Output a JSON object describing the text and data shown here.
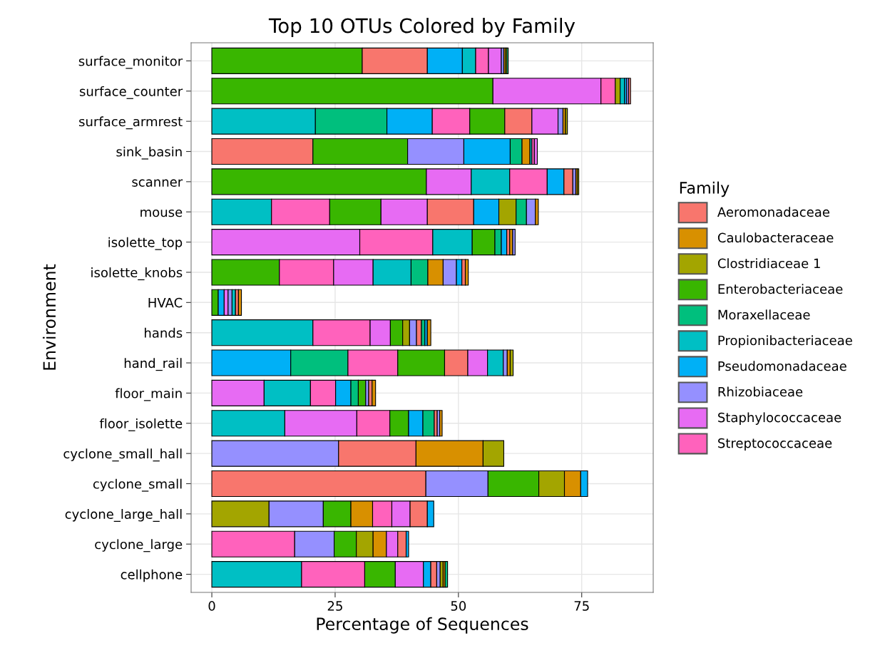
{
  "chart_data": {
    "type": "bar",
    "orientation": "horizontal",
    "stacked": true,
    "title": "Top 10 OTUs Colored by Family",
    "xlabel": "Percentage of Sequences",
    "ylabel": "Environment",
    "legend_title": "Family",
    "legend": "right",
    "grid": true,
    "xlim": [
      -4.2,
      89.5
    ],
    "xticks": [
      0,
      25,
      50,
      75
    ],
    "categories": [
      "surface_monitor",
      "surface_counter",
      "surface_armrest",
      "sink_basin",
      "scanner",
      "mouse",
      "isolette_top",
      "isolette_knobs",
      "HVAC",
      "hands",
      "hand_rail",
      "floor_main",
      "floor_isolette",
      "cyclone_small_hall",
      "cyclone_small",
      "cyclone_large_hall",
      "cyclone_large",
      "cellphone"
    ],
    "series": [
      {
        "values": [
          30.5,
          57.0,
          21.0,
          20.5,
          43.5,
          12.1,
          30.0,
          13.7,
          1.3,
          20.5,
          16.0,
          10.6,
          14.8,
          25.7,
          43.4,
          11.6,
          16.8,
          18.2
        ],
        "colors": [
          "#39B600",
          "#39B600",
          "#00BFC4",
          "#F8766D",
          "#39B600",
          "#00BFC4",
          "#E76BF3",
          "#39B600",
          "#39B600",
          "#00BFC4",
          "#00B0F6",
          "#E76BF3",
          "#00BFC4",
          "#9590FF",
          "#F8766D",
          "#A3A500",
          "#FF62BC",
          "#00BFC4"
        ]
      },
      {
        "values": [
          13.2,
          21.9,
          14.5,
          19.2,
          9.1,
          11.8,
          14.8,
          11.0,
          1.2,
          11.6,
          11.6,
          9.4,
          14.6,
          15.7,
          12.6,
          11.0,
          8.0,
          12.8
        ],
        "colors": [
          "#F8766D",
          "#E76BF3",
          "#00BF7D",
          "#39B600",
          "#E76BF3",
          "#FF62BC",
          "#FF62BC",
          "#FF62BC",
          "#00B0F6",
          "#FF62BC",
          "#00BF7D",
          "#00BFC4",
          "#E76BF3",
          "#F8766D",
          "#9590FF",
          "#9590FF",
          "#9590FF",
          "#FF62BC"
        ]
      },
      {
        "values": [
          7.1,
          2.9,
          9.2,
          11.4,
          7.8,
          10.4,
          8.0,
          8.0,
          0.8,
          4.1,
          10.1,
          5.1,
          6.7,
          13.6,
          10.3,
          5.6,
          4.5,
          6.2
        ],
        "colors": [
          "#00B0F6",
          "#FF62BC",
          "#00B0F6",
          "#9590FF",
          "#00BFC4",
          "#39B600",
          "#00BFC4",
          "#E76BF3",
          "#E76BF3",
          "#E76BF3",
          "#FF62BC",
          "#FF62BC",
          "#FF62BC",
          "#D89000",
          "#39B600",
          "#39B600",
          "#39B600",
          "#39B600"
        ]
      },
      {
        "values": [
          2.7,
          1.0,
          7.6,
          9.4,
          7.6,
          9.4,
          4.6,
          7.7,
          0.8,
          2.5,
          9.5,
          3.1,
          3.8,
          4.2,
          5.2,
          4.4,
          3.4,
          5.7
        ],
        "colors": [
          "#00BFC4",
          "#A3A500",
          "#FF62BC",
          "#00B0F6",
          "#FF62BC",
          "#E76BF3",
          "#39B600",
          "#00BFC4",
          "#9590FF",
          "#39B600",
          "#39B600",
          "#00B0F6",
          "#39B600",
          "#A3A500",
          "#A3A500",
          "#D89000",
          "#A3A500",
          "#E76BF3"
        ]
      },
      {
        "values": [
          2.6,
          0.9,
          7.1,
          2.4,
          3.4,
          9.4,
          1.3,
          3.4,
          0.7,
          1.4,
          4.7,
          1.5,
          2.9,
          null,
          3.3,
          3.9,
          2.7,
          1.5
        ],
        "colors": [
          "#FF62BC",
          "#00BFC4",
          "#39B600",
          "#00BF7D",
          "#00B0F6",
          "#F8766D",
          "#00BF7D",
          "#00BF7D",
          "#00BFC4",
          "#A3A500",
          "#F8766D",
          "#00BF7D",
          "#00B0F6",
          null,
          "#D89000",
          "#FF62BC",
          "#D89000",
          "#00B0F6"
        ]
      },
      {
        "values": [
          2.6,
          0.4,
          5.5,
          1.6,
          1.8,
          5.1,
          1.1,
          3.1,
          0.6,
          1.4,
          4.0,
          1.5,
          2.3,
          null,
          1.4,
          3.7,
          2.3,
          1.2
        ],
        "colors": [
          "#E76BF3",
          "#00B0F6",
          "#F8766D",
          "#D89000",
          "#F8766D",
          "#00B0F6",
          "#00B0F6",
          "#D89000",
          "#F8766D",
          "#9590FF",
          "#E76BF3",
          "#39B600",
          "#00BF7D",
          null,
          "#00B0F6",
          "#E76BF3",
          "#E76BF3",
          "#F8766D"
        ]
      },
      {
        "values": [
          0.5,
          0.4,
          5.3,
          0.4,
          0.6,
          3.5,
          0.6,
          2.7,
          0.6,
          1.0,
          3.2,
          0.6,
          0.6,
          null,
          null,
          3.5,
          1.7,
          0.7
        ],
        "colors": [
          "#9590FF",
          "#9590FF",
          "#E76BF3",
          "#00BFC4",
          "#9590FF",
          "#A3A500",
          "#F8766D",
          "#9590FF",
          "#D89000",
          "#F8766D",
          "#00BFC4",
          "#9590FF",
          "#F8766D",
          null,
          null,
          "#F8766D",
          "#F8766D",
          "#9590FF"
        ]
      },
      {
        "values": [
          0.3,
          0.4,
          1.0,
          0.5,
          0.3,
          2.1,
          0.6,
          1.1,
          null,
          0.7,
          0.8,
          0.7,
          0.5,
          null,
          null,
          1.3,
          0.5,
          0.6
        ],
        "colors": [
          "#D89000",
          "#F8766D",
          "#9590FF",
          "#FF62BC",
          "#D89000",
          "#00BF7D",
          "#D89000",
          "#00B0F6",
          null,
          "#00BF7D",
          "#9590FF",
          "#F8766D",
          "#9590FF",
          null,
          null,
          "#00B0F6",
          "#00B0F6",
          "#A3A500"
        ]
      },
      {
        "values": [
          0.3,
          null,
          0.5,
          0.6,
          0.3,
          1.8,
          0.5,
          0.7,
          null,
          0.5,
          0.6,
          0.7,
          0.5,
          null,
          null,
          null,
          null,
          0.4
        ],
        "colors": [
          "#A3A500",
          null,
          "#D89000",
          "#E76BF3",
          "#A3A500",
          "#9590FF",
          "#9590FF",
          "#F8766D",
          null,
          "#00B0F6",
          "#D89000",
          "#D89000",
          "#D89000",
          null,
          null,
          null,
          null,
          "#D89000"
        ]
      },
      {
        "values": [
          0.3,
          null,
          0.4,
          null,
          null,
          0.6,
          null,
          0.6,
          null,
          0.7,
          0.6,
          null,
          null,
          null,
          null,
          null,
          null,
          0.5
        ],
        "colors": [
          "#00BF7D",
          null,
          "#A3A500",
          null,
          null,
          "#D89000",
          null,
          "#D89000",
          null,
          "#D89000",
          "#A3A500",
          null,
          null,
          null,
          null,
          null,
          null,
          "#00BF7D"
        ]
      },
      {
        "name": "Aeromonadaceae",
        "color": "#F8766D",
        "values": [
          null,
          null,
          null,
          null,
          null,
          null,
          null,
          null,
          null,
          null,
          null,
          null,
          null,
          null,
          null,
          null,
          null,
          null
        ]
      },
      {
        "name": "Caulobacteraceae",
        "color": "#D89000",
        "values": [
          null,
          null,
          null,
          null,
          null,
          null,
          null,
          null,
          null,
          null,
          null,
          null,
          null,
          null,
          null,
          null,
          null,
          null
        ]
      },
      {
        "name": "Clostridiaceae 1",
        "color": "#A3A500",
        "values": [
          null,
          null,
          null,
          null,
          null,
          null,
          null,
          null,
          null,
          null,
          null,
          null,
          null,
          null,
          null,
          null,
          null,
          null
        ]
      },
      {
        "name": "Enterobacteriaceae",
        "color": "#39B600",
        "values": [
          null,
          null,
          null,
          null,
          null,
          null,
          null,
          null,
          null,
          null,
          null,
          null,
          null,
          null,
          null,
          null,
          null,
          null
        ]
      },
      {
        "name": "Moraxellaceae",
        "color": "#00BF7D",
        "values": [
          null,
          null,
          null,
          null,
          null,
          null,
          null,
          null,
          null,
          null,
          null,
          null,
          null,
          null,
          null,
          null,
          null,
          null
        ]
      },
      {
        "name": "Propionibacteriaceae",
        "color": "#00BFC4",
        "values": [
          null,
          null,
          null,
          null,
          null,
          null,
          null,
          null,
          null,
          null,
          null,
          null,
          null,
          null,
          null,
          null,
          null,
          null
        ]
      },
      {
        "name": "Pseudomonadaceae",
        "color": "#00B0F6",
        "values": [
          null,
          null,
          null,
          null,
          null,
          null,
          null,
          null,
          null,
          null,
          null,
          null,
          null,
          null,
          null,
          null,
          null,
          null
        ]
      },
      {
        "name": "Rhizobiaceae",
        "color": "#9590FF",
        "values": [
          null,
          null,
          null,
          null,
          null,
          null,
          null,
          null,
          null,
          null,
          null,
          null,
          null,
          null,
          null,
          null,
          null,
          null
        ]
      },
      {
        "name": "Staphylococcaceae",
        "color": "#E76BF3",
        "values": [
          null,
          null,
          null,
          null,
          null,
          null,
          null,
          null,
          null,
          null,
          null,
          null,
          null,
          null,
          null,
          null,
          null,
          null
        ]
      },
      {
        "name": "Streptococcaceae",
        "color": "#FF62BC",
        "values": [
          null,
          null,
          null,
          null,
          null,
          null,
          null,
          null,
          null,
          null,
          null,
          null,
          null,
          null,
          null,
          null,
          null,
          null
        ]
      }
    ]
  }
}
